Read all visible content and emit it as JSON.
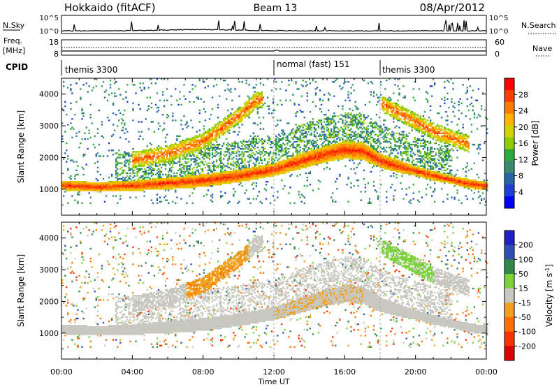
{
  "header": {
    "site": "Hokkaido (fitACF)",
    "beam": "Beam 13",
    "date": "08/Apr/2012"
  },
  "strips": {
    "nsky_label": "N.Sky",
    "nsky_ticks": [
      "10^5",
      "10^0"
    ],
    "nsearch_label": "N.Search",
    "nsearch_ticks": [
      "10^5",
      "10^0"
    ],
    "freq_label_line1": "Freq.",
    "freq_label_line2": "[MHz]",
    "freq_ticks": [
      "18",
      "8"
    ],
    "nave_label": "Nave",
    "nave_ticks": [
      "60",
      "0"
    ],
    "cpid_label": "CPID",
    "cpid_segments": [
      {
        "label": "themis 3300",
        "start_hour": 0,
        "end_hour": 12
      },
      {
        "label": "normal (fast) 151",
        "start_hour": 12,
        "end_hour": 18
      },
      {
        "label": "themis 3300",
        "start_hour": 18,
        "end_hour": 24
      }
    ]
  },
  "axes": {
    "ylabel": "Slant Range [km]",
    "xlabel": "Time UT",
    "yticks": [
      "1000",
      "2000",
      "3000",
      "4000"
    ],
    "xticks": [
      "00:00",
      "04:00",
      "08:00",
      "12:00",
      "16:00",
      "20:00",
      "00:00"
    ]
  },
  "power_colorbar": {
    "title": "Power [dB]",
    "ticks": [
      "28",
      "24",
      "20",
      "16",
      "12",
      "8",
      "4"
    ],
    "colors": [
      "#ff0000",
      "#ff3c00",
      "#ff7a00",
      "#ffb400",
      "#d2d200",
      "#8ccc00",
      "#2ea83c",
      "#3a8a70",
      "#2866a8",
      "#1e40d0",
      "#0000ff"
    ]
  },
  "velocity_colorbar": {
    "title": "Velocity [m s",
    "title_sup": "-1",
    "title_end": "]",
    "ticks": [
      "200",
      "100",
      "50",
      "15",
      "-15",
      "-50",
      "-100",
      "-200"
    ],
    "colors": [
      "#2020c0",
      "#3050b0",
      "#2f8a4a",
      "#7bd23a",
      "#c8c8c0",
      "#f0a020",
      "#ff7000",
      "#ff3000",
      "#e00000"
    ]
  },
  "chart_data": {
    "type": "heatmap",
    "title": "Hokkaido (fitACF) Beam 13 08/Apr/2012",
    "xlabel": "Time UT",
    "ylabel": "Slant Range [km]",
    "x_range_hours": [
      0,
      24
    ],
    "ylim": [
      180,
      4500
    ],
    "panels": [
      {
        "name": "Power",
        "units": "dB",
        "color_range": [
          0,
          30
        ],
        "main_echo_band": {
          "time_hour": [
            0,
            2,
            4,
            6,
            8,
            10,
            11,
            12,
            13,
            14,
            15,
            16,
            17,
            18,
            19,
            20,
            21,
            22,
            23,
            24
          ],
          "lower_km": [
            950,
            900,
            930,
            980,
            1050,
            1200,
            1300,
            1400,
            1550,
            1700,
            1850,
            1950,
            1900,
            1650,
            1500,
            1400,
            1250,
            1150,
            1000,
            950
          ],
          "upper_km": [
            1250,
            1200,
            1250,
            1350,
            1450,
            1600,
            1700,
            1800,
            2000,
            2200,
            2350,
            2500,
            2450,
            2100,
            1900,
            1700,
            1550,
            1400,
            1300,
            1200
          ],
          "peak_power_dB": 28
        },
        "upper_band": {
          "time_hour": [
            4,
            6,
            8,
            9,
            10,
            11,
            18,
            19,
            20,
            21,
            22,
            23
          ],
          "center_km": [
            1900,
            2100,
            2500,
            2900,
            3300,
            3800,
            3700,
            3400,
            3100,
            2800,
            2600,
            2400
          ],
          "peak_power_dB": 26
        }
      },
      {
        "name": "Velocity",
        "units": "m s-1",
        "color_range": [
          -200,
          200
        ],
        "dominant_values": [
          {
            "region": "main echo band",
            "velocity": 0
          },
          {
            "region": "08:00-10:00 2000-3200 km",
            "velocity": -50
          },
          {
            "region": "18:00-21:00 2600-3900 km",
            "velocity": 30
          }
        ]
      }
    ]
  }
}
